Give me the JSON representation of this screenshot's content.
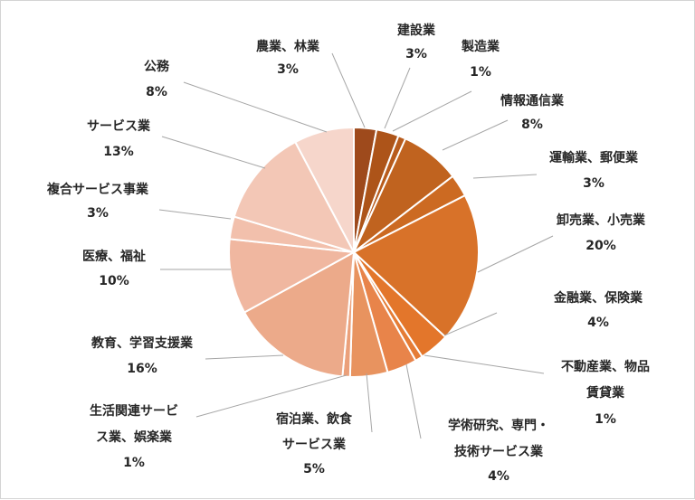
{
  "chart_data": {
    "type": "pie",
    "title": "",
    "slices": [
      {
        "label": "農業、林業",
        "percent_label": "3%",
        "value": 3,
        "color": "#9e4a1c"
      },
      {
        "label": "建設業",
        "percent_label": "3%",
        "value": 3,
        "color": "#ad5419"
      },
      {
        "label": "製造業",
        "percent_label": "1%",
        "value": 1,
        "color": "#b85b1c"
      },
      {
        "label": "情報通信業",
        "percent_label": "8%",
        "value": 8,
        "color": "#c0631f"
      },
      {
        "label": "運輸業、郵便業",
        "percent_label": "3%",
        "value": 3,
        "color": "#cc6a22"
      },
      {
        "label": "卸売業、小売業",
        "percent_label": "20%",
        "value": 20,
        "color": "#d87229"
      },
      {
        "label": "金融業、保険業",
        "percent_label": "4%",
        "value": 4,
        "color": "#e3762b"
      },
      {
        "label": "不動産業、物品賃貸業",
        "percent_label": "1%",
        "value": 1,
        "color": "#e57c36"
      },
      {
        "label": "学術研究、専門・技術サービス業",
        "percent_label": "4%",
        "value": 4,
        "color": "#e8844a"
      },
      {
        "label": "宿泊業、飲食サービス業",
        "percent_label": "5%",
        "value": 5,
        "color": "#e8935f"
      },
      {
        "label": "生活関連サービス業、娯楽業",
        "percent_label": "1%",
        "value": 1,
        "color": "#eba07a"
      },
      {
        "label": "教育、学習支援業",
        "percent_label": "16%",
        "value": 16,
        "color": "#ecaa8a"
      },
      {
        "label": "医療、福祉",
        "percent_label": "10%",
        "value": 10,
        "color": "#f0b7a0"
      },
      {
        "label": "複合サービス事業",
        "percent_label": "3%",
        "value": 3,
        "color": "#f2c0ac"
      },
      {
        "label": "サービス業",
        "percent_label": "13%",
        "value": 13,
        "color": "#f3c7b6"
      },
      {
        "label": "公務",
        "percent_label": "8%",
        "value": 8,
        "color": "#f6d6cb"
      }
    ]
  }
}
